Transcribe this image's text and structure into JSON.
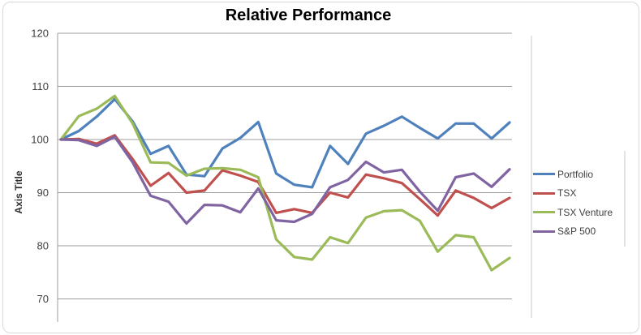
{
  "chart_data": {
    "type": "line",
    "title": "Relative Performance",
    "xlabel": "",
    "ylabel": "Axis Title",
    "ylim": [
      70,
      120
    ],
    "yticks": [
      120,
      110,
      100,
      90,
      80,
      70
    ],
    "grid": "horizontal-only",
    "legend_position": "right",
    "x": [
      1,
      2,
      3,
      4,
      5,
      6,
      7,
      8,
      9,
      10,
      11,
      12,
      13,
      14,
      15,
      16,
      17,
      18,
      19,
      20,
      21,
      22,
      23,
      24,
      25,
      26
    ],
    "series": [
      {
        "name": "Portfolio",
        "color": "#4F81BD",
        "values": [
          100,
          101.6,
          104.3,
          107.6,
          103.4,
          97.3,
          98.8,
          93.4,
          93.1,
          98.3,
          100.3,
          103.3,
          93.6,
          91.5,
          91.0,
          98.8,
          95.4,
          101.1,
          102.6,
          104.3,
          102.2,
          100.2,
          103.0,
          103.0,
          100.2,
          103.2
        ]
      },
      {
        "name": "TSX",
        "color": "#C0504D",
        "values": [
          100,
          100.1,
          99.2,
          100.8,
          96.3,
          91.3,
          93.7,
          90.0,
          90.4,
          94.2,
          93.2,
          92.0,
          86.2,
          86.9,
          86.2,
          90.0,
          89.1,
          93.4,
          92.7,
          91.8,
          88.8,
          85.7,
          90.4,
          89.0,
          87.1,
          89.0
        ]
      },
      {
        "name": "TSX Venture",
        "color": "#9BBB59",
        "values": [
          100,
          104.4,
          105.8,
          108.2,
          103.0,
          95.7,
          95.6,
          93.2,
          94.5,
          94.6,
          94.3,
          92.9,
          81.2,
          77.9,
          77.4,
          81.6,
          80.5,
          85.3,
          86.5,
          86.7,
          84.7,
          78.9,
          82.0,
          81.6,
          75.4,
          77.7
        ]
      },
      {
        "name": "S&P 500",
        "color": "#8064A2",
        "values": [
          100,
          99.9,
          98.8,
          100.5,
          95.7,
          89.4,
          88.3,
          84.2,
          87.7,
          87.6,
          86.3,
          90.8,
          84.8,
          84.5,
          86.0,
          91.0,
          92.4,
          95.8,
          93.8,
          94.3,
          90.2,
          86.6,
          92.9,
          93.6,
          91.1,
          94.4
        ]
      }
    ],
    "colors": {
      "gridline": "#9c9c9c",
      "axis_line": "#9c9c9c",
      "divider": "#c9c9c9",
      "title_text": "#000000",
      "tick_text": "#3f3f3f"
    }
  }
}
